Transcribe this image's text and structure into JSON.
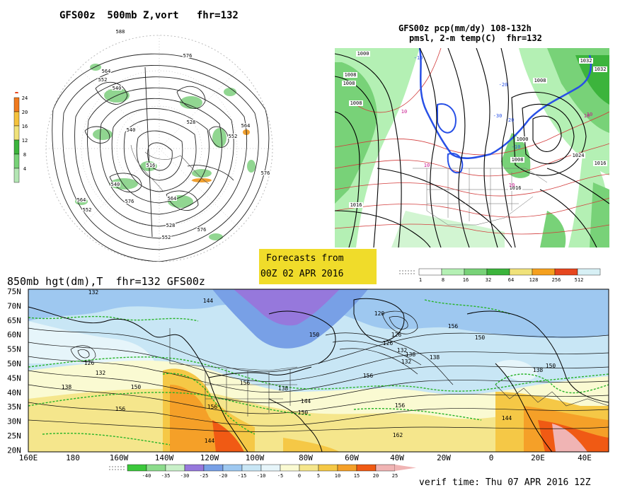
{
  "panel_500mb": {
    "title": "GFS00z  500mb Z,vort   fhr=132",
    "contour_labels": [
      "588",
      "576",
      "564",
      "552",
      "540",
      "528",
      "516",
      "564",
      "552",
      "576",
      "576",
      "552",
      "564",
      "540",
      "528",
      "564",
      "552",
      "576",
      "540"
    ],
    "scale_values": [
      "24",
      "20",
      "16",
      "12",
      "8",
      "4"
    ],
    "scale_colors": [
      "#f07a1e",
      "#f5c23c",
      "#f0e27a",
      "#3cb43c",
      "#78d278",
      "#b4e6b4"
    ]
  },
  "panel_precip": {
    "title_line1": "GFS00z pcp(mm/dy) 108-132h",
    "title_line2": "pmsl, 2-m temp(C)  fhr=132",
    "isobar_labels": [
      "1000",
      "1008",
      "1008",
      "1032",
      "1008",
      "1000",
      "1024",
      "1008",
      "1016",
      "1016",
      "1016",
      "1008",
      "1032"
    ],
    "temp_labels": [
      "10",
      "10",
      "-10",
      "-20",
      "-30",
      "-20",
      "-10",
      "10",
      "10",
      "10"
    ],
    "scale_values": [
      "1",
      "8",
      "16",
      "32",
      "64",
      "128",
      "256",
      "512"
    ],
    "scale_colors": [
      "#ffffff",
      "#b4f0b4",
      "#78d278",
      "#3cb43c",
      "#f0e27a",
      "#f5a01e",
      "#e6461e",
      "#d7f0f5"
    ]
  },
  "forecast_box": {
    "line1": "Forecasts from",
    "line2": "00Z 02 APR 2016",
    "bg_color": "#f0dc2a"
  },
  "panel_850mb": {
    "title": "850mb hgt(dm),T  fhr=132 GFS00z",
    "lat_labels": [
      "75N",
      "70N",
      "65N",
      "60N",
      "55N",
      "50N",
      "45N",
      "40N",
      "35N",
      "30N",
      "25N",
      "20N"
    ],
    "lon_labels": [
      "160E",
      "180",
      "160W",
      "140W",
      "120W",
      "100W",
      "80W",
      "60W",
      "40W",
      "20W",
      "0",
      "20E",
      "40E"
    ],
    "height_labels": [
      "132",
      "126",
      "132",
      "138",
      "144",
      "150",
      "156",
      "144",
      "150",
      "156",
      "138",
      "156",
      "144",
      "150",
      "156",
      "126",
      "120",
      "138",
      "132",
      "126",
      "132",
      "138",
      "150",
      "156",
      "162",
      "156",
      "144",
      "150",
      "138"
    ],
    "scale_values": [
      "-40",
      "-35",
      "-30",
      "-25",
      "-20",
      "-15",
      "-10",
      "-5",
      "0",
      "5",
      "10",
      "15",
      "20",
      "25"
    ],
    "scale_colors": [
      "#3cc83c",
      "#8cdc8c",
      "#c8f0c8",
      "#9678dc",
      "#78a0e6",
      "#9ec8f0",
      "#c8e6f5",
      "#e6f5fa",
      "#fafad2",
      "#f5e68c",
      "#f5c846",
      "#f5a028",
      "#f05a14",
      "#f0b4b4"
    ],
    "verif_time": "verif time: Thu 07 APR 2016 12Z"
  }
}
